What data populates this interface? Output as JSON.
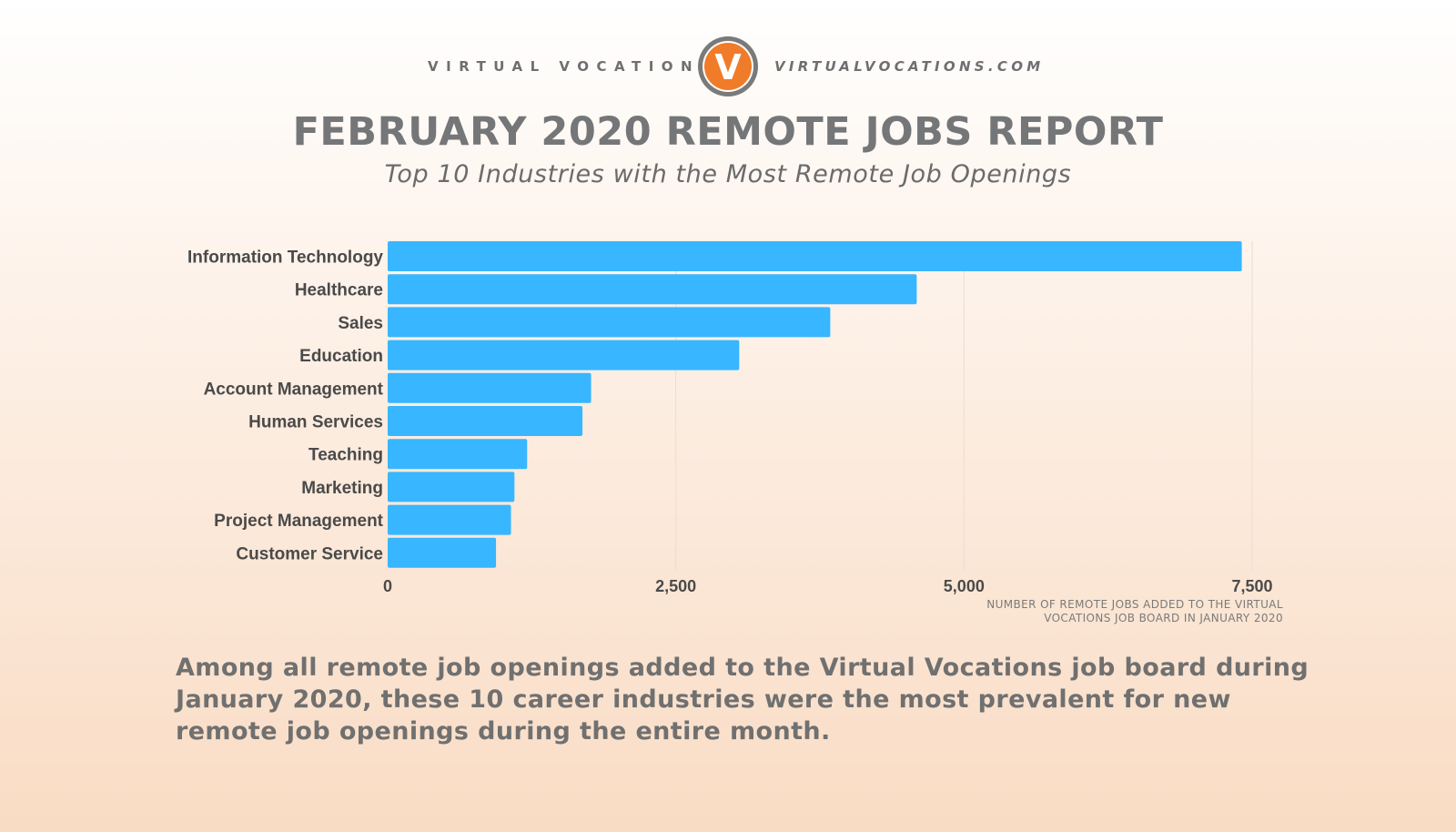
{
  "brand": {
    "name": "VIRTUAL VOCATIONS",
    "logo_letter": "V",
    "url": "VIRTUALVOCATIONS.COM"
  },
  "header": {
    "title": "FEBRUARY 2020 REMOTE JOBS REPORT",
    "subtitle": "Top 10 Industries with the Most Remote Job Openings"
  },
  "caption": "Among all remote job openings added to the Virtual Vocations job board during January 2020, these 10 career industries were the most prevalent for new remote job openings during the entire month.",
  "colors": {
    "bar": "#38b6ff",
    "logo_ring": "#7a7a7a",
    "logo_fill": "#f07b28"
  },
  "chart_data": {
    "type": "bar",
    "orientation": "horizontal",
    "categories": [
      "Information Technology",
      "Healthcare",
      "Sales",
      "Education",
      "Account Management",
      "Human Services",
      "Teaching",
      "Marketing",
      "Project Management",
      "Customer Service"
    ],
    "values": [
      7410,
      4590,
      3840,
      3050,
      1765,
      1690,
      1210,
      1100,
      1070,
      940
    ],
    "xlabel": "NUMBER OF REMOTE JOBS ADDED TO THE VIRTUAL VOCATIONS JOB BOARD IN JANUARY 2020",
    "xticks": [
      "0",
      "2,500",
      "5,000",
      "7,500"
    ],
    "xlim": [
      0,
      7500
    ],
    "grid": "vertical"
  }
}
